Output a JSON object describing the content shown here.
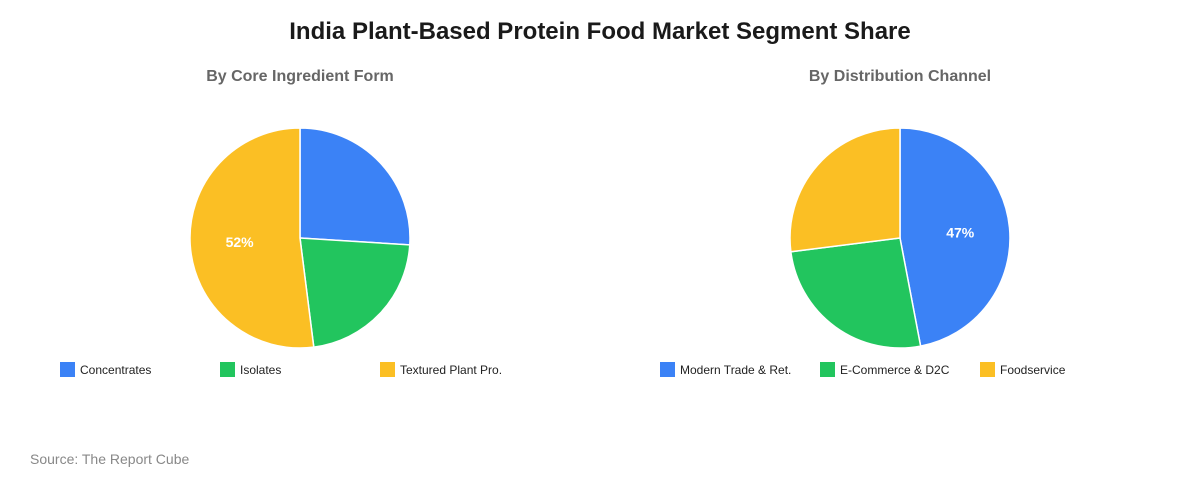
{
  "title": "India Plant-Based Protein Food Market Segment Share",
  "source": "Source: The Report Cube",
  "colors": {
    "blue": "#3b82f6",
    "green": "#22c55e",
    "yellow": "#fbbf24"
  },
  "chart_data": [
    {
      "type": "pie",
      "title": "By Core Ingredient Form",
      "slices": [
        {
          "label": "Concentrates",
          "value": 26,
          "color": "#3b82f6",
          "data_label": ""
        },
        {
          "label": "Isolates",
          "value": 22,
          "color": "#22c55e",
          "data_label": ""
        },
        {
          "label": "Textured Plant Pro.",
          "value": 52,
          "color": "#fbbf24",
          "data_label": "52%"
        }
      ],
      "legend_position": "bottom"
    },
    {
      "type": "pie",
      "title": "By Distribution Channel",
      "slices": [
        {
          "label": "Modern Trade & Ret.",
          "value": 47,
          "color": "#3b82f6",
          "data_label": "47%"
        },
        {
          "label": "E-Commerce & D2C",
          "value": 26,
          "color": "#22c55e",
          "data_label": ""
        },
        {
          "label": "Foodservice",
          "value": 27,
          "color": "#fbbf24",
          "data_label": ""
        }
      ],
      "legend_position": "bottom"
    }
  ]
}
